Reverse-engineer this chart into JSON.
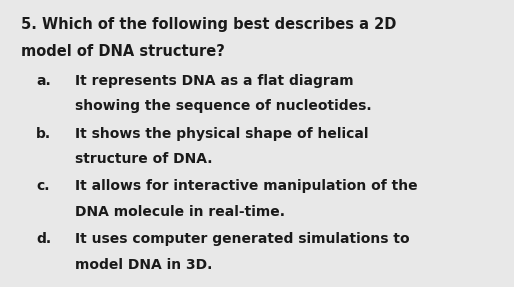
{
  "background_color": "#e8e8e8",
  "text_color": "#1a1a1a",
  "question_number": "5.",
  "question_line1": "Which of the following best describes a 2D",
  "question_line2": "model of DNA structure?",
  "options": [
    {
      "label": "a.",
      "line1": "It represents DNA as a flat diagram",
      "line2": "showing the sequence of nucleotides."
    },
    {
      "label": "b.",
      "line1": "It shows the physical shape of helical",
      "line2": "structure of DNA."
    },
    {
      "label": "c.",
      "line1": "It allows for interactive manipulation of the",
      "line2": "DNA molecule in real-time."
    },
    {
      "label": "d.",
      "line1": "It uses computer generated simulations to",
      "line2": "model DNA in 3D."
    }
  ],
  "question_fontsize": 10.5,
  "option_fontsize": 10.0,
  "font_family": "DejaVu Sans"
}
